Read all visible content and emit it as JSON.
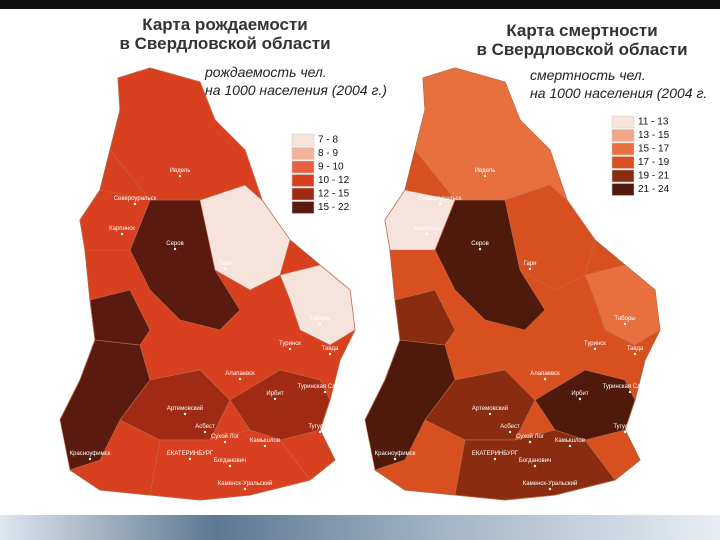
{
  "maps": [
    {
      "title": [
        "Карта рождаемости",
        "в Свердловской области"
      ],
      "subtitle": [
        "рождаемость чел.",
        "на 1000 населения (2004 г.)"
      ],
      "legend": [
        {
          "label": "7 - 8",
          "color": "#f6e4dc"
        },
        {
          "label": "8 - 9",
          "color": "#f2b39c"
        },
        {
          "label": "9 - 10",
          "color": "#e8603f"
        },
        {
          "label": "10 - 12",
          "color": "#d8401f"
        },
        {
          "label": "12 - 15",
          "color": "#a02a14"
        },
        {
          "label": "15 - 22",
          "color": "#5a1a10"
        }
      ],
      "places": [
        "Ивдель",
        "Североуральск",
        "Карпинск",
        "Серов",
        "Гари",
        "Таборы",
        "Тавда",
        "Туринск",
        "Туринская Слобода",
        "Ирбит",
        "Алапаевск",
        "Артемовский",
        "Асбест",
        "Сухой Лог",
        "Камышлов",
        "ЕКАТЕРИНБУРГ",
        "Богданович",
        "Тугулым",
        "Каменск-Уральский",
        "Красноуфимск"
      ]
    },
    {
      "title": [
        "Карта смертности",
        "в Свердловской области"
      ],
      "subtitle": [
        "смертность чел.",
        "на 1000 населения (2004 г."
      ],
      "legend": [
        {
          "label": "11 - 13",
          "color": "#f6e4dc"
        },
        {
          "label": "13 - 15",
          "color": "#f2a888"
        },
        {
          "label": "15 - 17",
          "color": "#e8703f"
        },
        {
          "label": "17 - 19",
          "color": "#d8501f"
        },
        {
          "label": "19 - 21",
          "color": "#8a2c10"
        },
        {
          "label": "21 - 24",
          "color": "#4f1a0c"
        }
      ],
      "places": [
        "Ивдель",
        "Североуральск",
        "Карпинск",
        "Серов",
        "Гари",
        "Таборы",
        "Тавда",
        "Туринск",
        "Туринская Слобода",
        "Ирбит",
        "Алапаевск",
        "Артемовский",
        "Асбест",
        "Сухой Лог",
        "Камышлов",
        "ЕКАТЕРИНБУРГ",
        "Богданович",
        "Тугулым",
        "Каменск-Уральский",
        "Красноуфимск"
      ]
    }
  ]
}
